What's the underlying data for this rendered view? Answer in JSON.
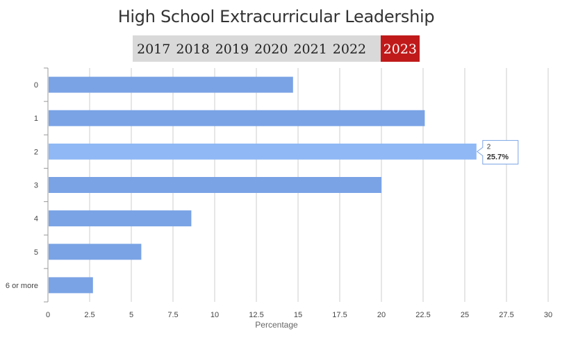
{
  "title": "High School Extracurricular Leadership",
  "years": [
    {
      "label": "2017",
      "active": false
    },
    {
      "label": "2018",
      "active": false
    },
    {
      "label": "2019",
      "active": false
    },
    {
      "label": "2020",
      "active": false
    },
    {
      "label": "2021",
      "active": false
    },
    {
      "label": "2022",
      "active": false
    },
    {
      "label": "2023",
      "active": true
    }
  ],
  "colors": {
    "bar": "#7aa3e5",
    "bar_highlight": "#8fb8f5",
    "active_year": "#c01a1a",
    "grid": "#cccccc"
  },
  "tooltip": {
    "category": "2",
    "value": "25.7%"
  },
  "chart_data": {
    "type": "bar",
    "orientation": "horizontal",
    "categories": [
      "0",
      "1",
      "2",
      "3",
      "4",
      "5",
      "6 or more"
    ],
    "values": [
      14.7,
      22.6,
      25.7,
      20.0,
      8.6,
      5.6,
      2.7
    ],
    "xlabel": "Percentage",
    "ylabel": "",
    "xlim": [
      0,
      30
    ],
    "xticks": [
      "0",
      "2.5",
      "5",
      "7.5",
      "10",
      "12.5",
      "15",
      "17.5",
      "20",
      "22.5",
      "25",
      "27.5",
      "30"
    ],
    "grid": true,
    "highlighted_category": "2"
  }
}
